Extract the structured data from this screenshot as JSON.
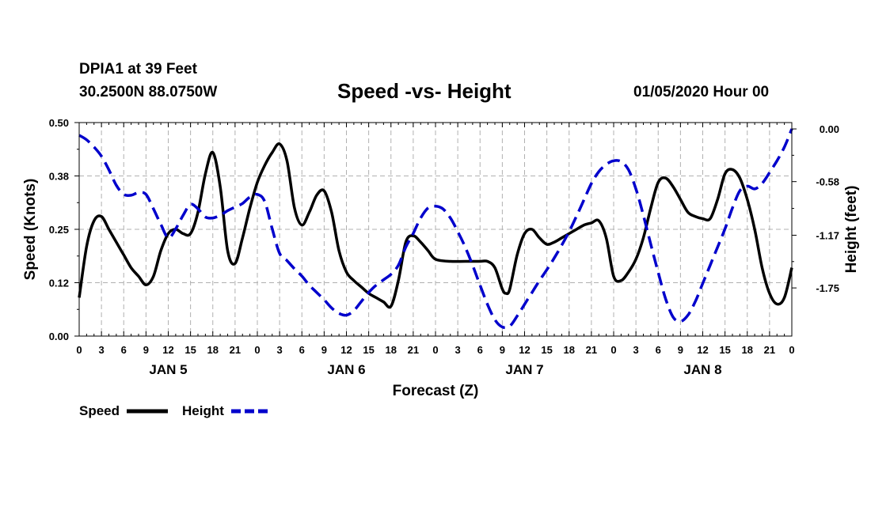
{
  "header": {
    "station": "DPIA1 at 39 Feet",
    "coords": "30.2500N 88.0750W",
    "title": "Speed -vs- Height",
    "run": "01/05/2020 Hour 00"
  },
  "colors": {
    "speed": "#000000",
    "height": "#0000cc",
    "grid": "#b0b0b0"
  },
  "chart_data": {
    "type": "line",
    "title": "Speed -vs- Height",
    "xlabel": "Forecast (Z)",
    "ylabel_left": "Speed (Knots)",
    "ylabel_right": "Height (feet)",
    "x_unit": "hours since 01/05/2020 00Z",
    "xlim": [
      0,
      96
    ],
    "ylim_left": [
      0,
      0.5
    ],
    "ylim_right": [
      -2.28,
      0.07
    ],
    "left_ticks": [
      {
        "v": 0,
        "label": "0.00"
      },
      {
        "v": 0.125,
        "label": "0.12"
      },
      {
        "v": 0.25,
        "label": "0.25"
      },
      {
        "v": 0.375,
        "label": "0.38"
      },
      {
        "v": 0.5,
        "label": "0.50"
      }
    ],
    "right_ticks": [
      {
        "v": 0,
        "label": "0.00"
      },
      {
        "v": -0.58,
        "label": "-0.58"
      },
      {
        "v": -1.17,
        "label": "-1.17"
      },
      {
        "v": -1.75,
        "label": "-1.75"
      }
    ],
    "x_ticks": [
      {
        "h": 0,
        "label": "0"
      },
      {
        "h": 3,
        "label": "3"
      },
      {
        "h": 6,
        "label": "6"
      },
      {
        "h": 9,
        "label": "9"
      },
      {
        "h": 12,
        "label": "12"
      },
      {
        "h": 15,
        "label": "15"
      },
      {
        "h": 18,
        "label": "18"
      },
      {
        "h": 21,
        "label": "21"
      },
      {
        "h": 24,
        "label": "0"
      },
      {
        "h": 27,
        "label": "3"
      },
      {
        "h": 30,
        "label": "6"
      },
      {
        "h": 33,
        "label": "9"
      },
      {
        "h": 36,
        "label": "12"
      },
      {
        "h": 39,
        "label": "15"
      },
      {
        "h": 42,
        "label": "18"
      },
      {
        "h": 45,
        "label": "21"
      },
      {
        "h": 48,
        "label": "0"
      },
      {
        "h": 51,
        "label": "3"
      },
      {
        "h": 54,
        "label": "6"
      },
      {
        "h": 57,
        "label": "9"
      },
      {
        "h": 60,
        "label": "12"
      },
      {
        "h": 63,
        "label": "15"
      },
      {
        "h": 66,
        "label": "18"
      },
      {
        "h": 69,
        "label": "21"
      },
      {
        "h": 72,
        "label": "0"
      },
      {
        "h": 75,
        "label": "3"
      },
      {
        "h": 78,
        "label": "6"
      },
      {
        "h": 81,
        "label": "9"
      },
      {
        "h": 84,
        "label": "12"
      },
      {
        "h": 87,
        "label": "15"
      },
      {
        "h": 90,
        "label": "18"
      },
      {
        "h": 93,
        "label": "21"
      },
      {
        "h": 96,
        "label": "0"
      }
    ],
    "day_labels": [
      {
        "h": 12,
        "label": "JAN 5"
      },
      {
        "h": 36,
        "label": "JAN 6"
      },
      {
        "h": 60,
        "label": "JAN 7"
      },
      {
        "h": 84,
        "label": "JAN 8"
      }
    ],
    "series": [
      {
        "name": "Speed",
        "axis": "left",
        "style": "solid",
        "points": [
          [
            0,
            0.09
          ],
          [
            1,
            0.21
          ],
          [
            2,
            0.27
          ],
          [
            3,
            0.28
          ],
          [
            4,
            0.25
          ],
          [
            5,
            0.22
          ],
          [
            6,
            0.19
          ],
          [
            7,
            0.16
          ],
          [
            8,
            0.14
          ],
          [
            9,
            0.12
          ],
          [
            10,
            0.14
          ],
          [
            11,
            0.2
          ],
          [
            12,
            0.24
          ],
          [
            13,
            0.25
          ],
          [
            14,
            0.24
          ],
          [
            15,
            0.24
          ],
          [
            16,
            0.29
          ],
          [
            17,
            0.38
          ],
          [
            18,
            0.43
          ],
          [
            19,
            0.35
          ],
          [
            20,
            0.2
          ],
          [
            21,
            0.17
          ],
          [
            22,
            0.23
          ],
          [
            23,
            0.3
          ],
          [
            24,
            0.36
          ],
          [
            25,
            0.4
          ],
          [
            26,
            0.43
          ],
          [
            27,
            0.45
          ],
          [
            28,
            0.41
          ],
          [
            29,
            0.3
          ],
          [
            30,
            0.26
          ],
          [
            31,
            0.29
          ],
          [
            32,
            0.33
          ],
          [
            33,
            0.34
          ],
          [
            34,
            0.29
          ],
          [
            35,
            0.2
          ],
          [
            36,
            0.15
          ],
          [
            37,
            0.13
          ],
          [
            38,
            0.115
          ],
          [
            39,
            0.1
          ],
          [
            40,
            0.09
          ],
          [
            41,
            0.08
          ],
          [
            42,
            0.07
          ],
          [
            43,
            0.13
          ],
          [
            44,
            0.22
          ],
          [
            45,
            0.235
          ],
          [
            46,
            0.22
          ],
          [
            47,
            0.2
          ],
          [
            48,
            0.18
          ],
          [
            50,
            0.175
          ],
          [
            52,
            0.175
          ],
          [
            54,
            0.175
          ],
          [
            55,
            0.175
          ],
          [
            56,
            0.16
          ],
          [
            57,
            0.11
          ],
          [
            57.5,
            0.1
          ],
          [
            58,
            0.11
          ],
          [
            59,
            0.19
          ],
          [
            60,
            0.24
          ],
          [
            61,
            0.25
          ],
          [
            62,
            0.23
          ],
          [
            63,
            0.215
          ],
          [
            64,
            0.22
          ],
          [
            65,
            0.23
          ],
          [
            66,
            0.24
          ],
          [
            67,
            0.25
          ],
          [
            68,
            0.26
          ],
          [
            69,
            0.265
          ],
          [
            70,
            0.27
          ],
          [
            71,
            0.23
          ],
          [
            72,
            0.14
          ],
          [
            73,
            0.13
          ],
          [
            74,
            0.15
          ],
          [
            75,
            0.18
          ],
          [
            76,
            0.23
          ],
          [
            77,
            0.3
          ],
          [
            78,
            0.36
          ],
          [
            79,
            0.37
          ],
          [
            80,
            0.35
          ],
          [
            81,
            0.32
          ],
          [
            82,
            0.29
          ],
          [
            83,
            0.28
          ],
          [
            84,
            0.275
          ],
          [
            85,
            0.275
          ],
          [
            86,
            0.32
          ],
          [
            87,
            0.38
          ],
          [
            88,
            0.39
          ],
          [
            89,
            0.37
          ],
          [
            90,
            0.32
          ],
          [
            91,
            0.25
          ],
          [
            92,
            0.16
          ],
          [
            93,
            0.1
          ],
          [
            94,
            0.075
          ],
          [
            95,
            0.09
          ],
          [
            96,
            0.16
          ]
        ]
      },
      {
        "name": "Height",
        "axis": "right",
        "style": "dashed",
        "points": [
          [
            0,
            -0.07
          ],
          [
            1,
            -0.12
          ],
          [
            2,
            -0.2
          ],
          [
            3,
            -0.3
          ],
          [
            4,
            -0.45
          ],
          [
            5,
            -0.62
          ],
          [
            6,
            -0.72
          ],
          [
            7,
            -0.73
          ],
          [
            8,
            -0.7
          ],
          [
            9,
            -0.72
          ],
          [
            10,
            -0.88
          ],
          [
            11,
            -1.05
          ],
          [
            12,
            -1.2
          ],
          [
            13,
            -1.1
          ],
          [
            14,
            -0.95
          ],
          [
            15,
            -0.83
          ],
          [
            16,
            -0.88
          ],
          [
            17,
            -0.97
          ],
          [
            18,
            -0.98
          ],
          [
            19,
            -0.95
          ],
          [
            20,
            -0.9
          ],
          [
            21,
            -0.86
          ],
          [
            22,
            -0.82
          ],
          [
            23,
            -0.75
          ],
          [
            24,
            -0.72
          ],
          [
            25,
            -0.8
          ],
          [
            26,
            -1.1
          ],
          [
            27,
            -1.37
          ],
          [
            28,
            -1.45
          ],
          [
            29,
            -1.54
          ],
          [
            30,
            -1.62
          ],
          [
            31,
            -1.72
          ],
          [
            32,
            -1.8
          ],
          [
            33,
            -1.88
          ],
          [
            34,
            -1.97
          ],
          [
            35,
            -2.03
          ],
          [
            36,
            -2.05
          ],
          [
            37,
            -2.0
          ],
          [
            38,
            -1.9
          ],
          [
            39,
            -1.8
          ],
          [
            40,
            -1.72
          ],
          [
            41,
            -1.66
          ],
          [
            42,
            -1.6
          ],
          [
            43,
            -1.5
          ],
          [
            44,
            -1.3
          ],
          [
            45,
            -1.15
          ],
          [
            46,
            -0.98
          ],
          [
            47,
            -0.87
          ],
          [
            48,
            -0.85
          ],
          [
            49,
            -0.88
          ],
          [
            50,
            -0.98
          ],
          [
            51,
            -1.13
          ],
          [
            52,
            -1.3
          ],
          [
            53,
            -1.5
          ],
          [
            54,
            -1.72
          ],
          [
            55,
            -1.93
          ],
          [
            56,
            -2.1
          ],
          [
            57,
            -2.18
          ],
          [
            58,
            -2.17
          ],
          [
            59,
            -2.06
          ],
          [
            60,
            -1.93
          ],
          [
            61,
            -1.8
          ],
          [
            62,
            -1.67
          ],
          [
            63,
            -1.55
          ],
          [
            64,
            -1.42
          ],
          [
            65,
            -1.28
          ],
          [
            66,
            -1.13
          ],
          [
            67,
            -0.96
          ],
          [
            68,
            -0.78
          ],
          [
            69,
            -0.6
          ],
          [
            70,
            -0.47
          ],
          [
            71,
            -0.39
          ],
          [
            72,
            -0.35
          ],
          [
            73,
            -0.36
          ],
          [
            74,
            -0.45
          ],
          [
            75,
            -0.66
          ],
          [
            76,
            -0.95
          ],
          [
            77,
            -1.27
          ],
          [
            78,
            -1.58
          ],
          [
            79,
            -1.87
          ],
          [
            80,
            -2.07
          ],
          [
            81,
            -2.12
          ],
          [
            82,
            -2.05
          ],
          [
            83,
            -1.9
          ],
          [
            84,
            -1.7
          ],
          [
            85,
            -1.5
          ],
          [
            86,
            -1.3
          ],
          [
            87,
            -1.1
          ],
          [
            88,
            -0.87
          ],
          [
            89,
            -0.68
          ],
          [
            90,
            -0.63
          ],
          [
            91,
            -0.66
          ],
          [
            92,
            -0.6
          ],
          [
            93,
            -0.48
          ],
          [
            94,
            -0.35
          ],
          [
            95,
            -0.2
          ],
          [
            96,
            0.0
          ]
        ]
      }
    ],
    "legend": [
      {
        "label": "Speed",
        "series": "Speed"
      },
      {
        "label": "Height",
        "series": "Height"
      }
    ],
    "legend_position": "bottom-left",
    "grid": true
  }
}
